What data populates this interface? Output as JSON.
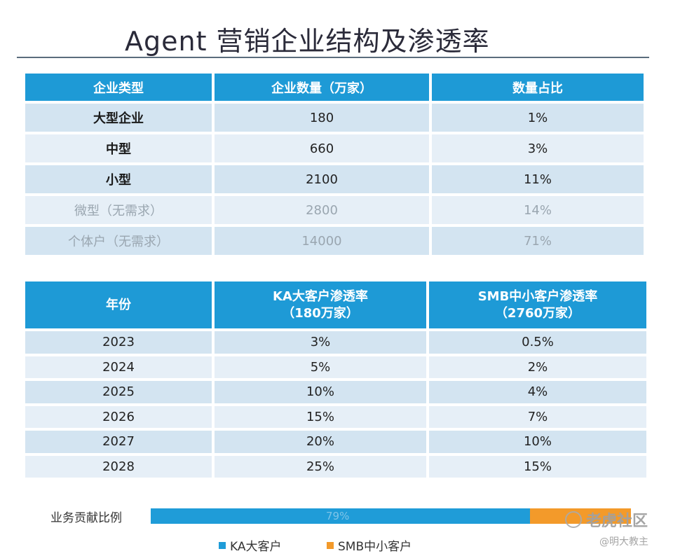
{
  "title": "Agent 营销企业结构及渗透率",
  "table1": {
    "headers": [
      "企业类型",
      "企业数量（万家）",
      "数量占比"
    ],
    "rows": [
      {
        "type": "大型企业",
        "count": "180",
        "share": "1%"
      },
      {
        "type": "中型",
        "count": "660",
        "share": "3%"
      },
      {
        "type": "小型",
        "count": "2100",
        "share": "11%"
      },
      {
        "type": "微型（无需求）",
        "count": "2800",
        "share": "14%"
      },
      {
        "type": "个体户（无需求）",
        "count": "14000",
        "share": "71%"
      }
    ]
  },
  "table2": {
    "headers": {
      "year": "年份",
      "ka_line1": "KA大客户渗透率",
      "ka_line2": "（180万家）",
      "smb_line1": "SMB中小客户渗透率",
      "smb_line2": "（2760万家）"
    },
    "rows": [
      {
        "year": "2023",
        "ka": "3%",
        "smb": "0.5%"
      },
      {
        "year": "2024",
        "ka": "5%",
        "smb": "2%"
      },
      {
        "year": "2025",
        "ka": "10%",
        "smb": "4%"
      },
      {
        "year": "2026",
        "ka": "15%",
        "smb": "7%"
      },
      {
        "year": "2027",
        "ka": "20%",
        "smb": "10%"
      },
      {
        "year": "2028",
        "ka": "25%",
        "smb": "15%"
      }
    ]
  },
  "contribution": {
    "label": "业务贡献比例",
    "ka_share": 0.79,
    "ka_text": "79%",
    "ka_color": "#1f9cd8",
    "smb_color": "#f39a2a"
  },
  "legend": {
    "ka": "KA大客户",
    "smb": "SMB中小客户"
  },
  "watermark": {
    "logo_text": "老虎社区",
    "handle": "@明大教主"
  }
}
